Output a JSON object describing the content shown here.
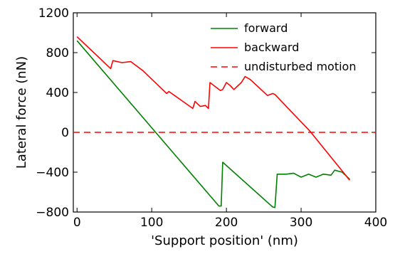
{
  "chart_data": {
    "type": "line",
    "xlabel": "'Support position' (nm)",
    "ylabel": "Lateral force (nN)",
    "xlim": [
      -5,
      400
    ],
    "ylim": [
      -800,
      1200
    ],
    "xticks": [
      "0",
      "100",
      "200",
      "300",
      "400"
    ],
    "yticks": [
      "−800",
      "−400",
      "0",
      "400",
      "800",
      "1200"
    ],
    "xtick_values": [
      0,
      100,
      200,
      300,
      400
    ],
    "ytick_values": [
      -800,
      -400,
      0,
      400,
      800,
      1200
    ],
    "grid": false,
    "legend_position": "top-right",
    "series": [
      {
        "name": "forward",
        "color": "#008000",
        "style": "solid",
        "x": [
          0,
          190,
          193,
          195,
          262,
          265,
          268,
          280,
          290,
          300,
          310,
          320,
          330,
          340,
          345,
          355,
          365
        ],
        "y": [
          920,
          -740,
          -740,
          -300,
          -750,
          -755,
          -420,
          -420,
          -410,
          -450,
          -420,
          -450,
          -420,
          -430,
          -380,
          -400,
          -470
        ]
      },
      {
        "name": "backward",
        "color": "#ff0000",
        "style": "solid",
        "x": [
          0,
          45,
          48,
          60,
          72,
          88,
          120,
          123,
          155,
          158,
          165,
          172,
          176,
          178,
          192,
          195,
          200,
          205,
          210,
          220,
          225,
          232,
          255,
          262,
          265,
          312,
          365
        ],
        "y": [
          960,
          640,
          720,
          700,
          710,
          620,
          390,
          410,
          240,
          310,
          260,
          270,
          240,
          500,
          420,
          430,
          500,
          470,
          430,
          500,
          560,
          530,
          370,
          390,
          380,
          10,
          -480
        ]
      },
      {
        "name": "undisturbed motion",
        "color": "#ff0000",
        "style": "dashed",
        "x": [
          -5,
          400
        ],
        "y": [
          0,
          0
        ]
      }
    ]
  }
}
